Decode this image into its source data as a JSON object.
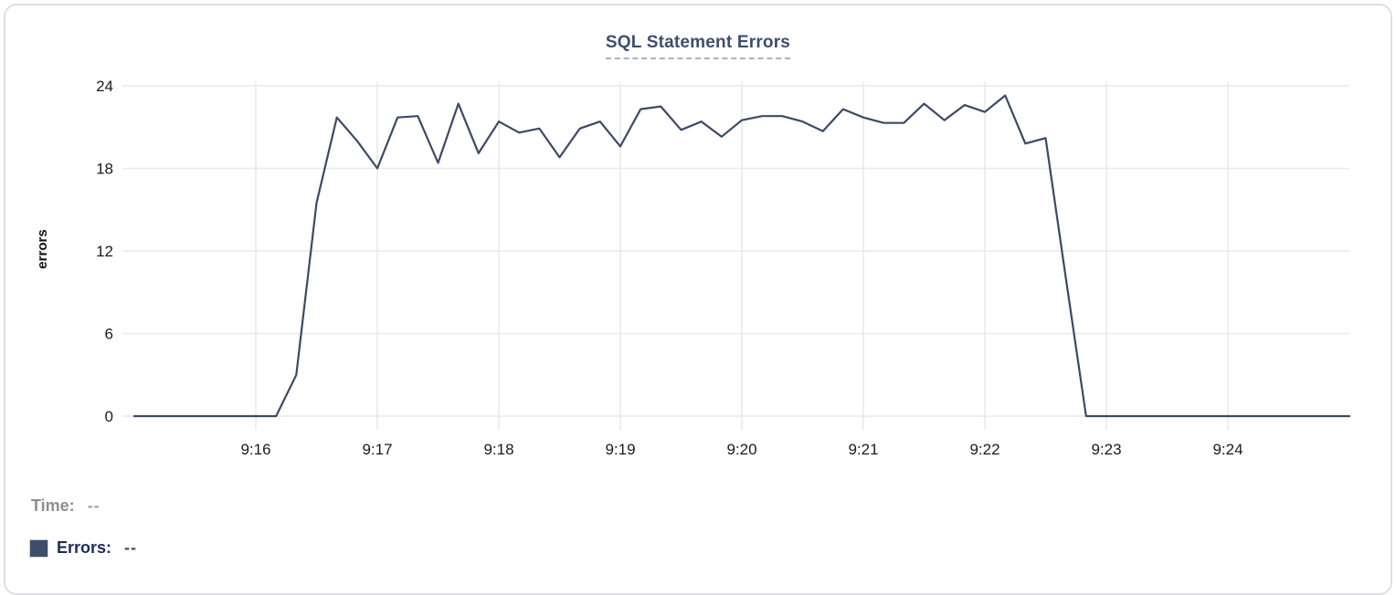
{
  "chart": {
    "title": "SQL Statement Errors"
  },
  "tooltip": {
    "time_label": "Time:",
    "time_value": "--",
    "errors_label": "Errors:",
    "errors_value": "--"
  },
  "colors": {
    "series_line": "#3b4a64",
    "legend_swatch": "#3e4d68",
    "title_text": "#3e4e6e",
    "gridline": "#e8e9eb",
    "axis_text": "#1b1b1f"
  },
  "chart_data": {
    "type": "line",
    "title": "SQL Statement Errors",
    "xlabel": "",
    "ylabel": "errors",
    "ylim": [
      0,
      24
    ],
    "y_ticks": [
      0,
      6,
      12,
      18,
      24
    ],
    "x_ticks": [
      {
        "label": "9:16",
        "t": 60
      },
      {
        "label": "9:17",
        "t": 120
      },
      {
        "label": "9:18",
        "t": 180
      },
      {
        "label": "9:19",
        "t": 240
      },
      {
        "label": "9:20",
        "t": 300
      },
      {
        "label": "9:21",
        "t": 360
      },
      {
        "label": "9:22",
        "t": 420
      },
      {
        "label": "9:23",
        "t": 480
      },
      {
        "label": "9:24",
        "t": 540
      }
    ],
    "x_start": "9:15:00",
    "x_end": "9:25:00",
    "x_step_seconds": 10,
    "grid": true,
    "legend_position": "bottom-left",
    "series": [
      {
        "name": "Errors",
        "values": [
          0,
          0,
          0,
          0,
          0,
          0,
          0,
          0,
          3,
          15.5,
          21.7,
          20,
          18,
          21.7,
          21.8,
          18.4,
          22.7,
          19.1,
          21.4,
          20.6,
          20.9,
          18.8,
          20.9,
          21.4,
          19.6,
          22.3,
          22.5,
          20.8,
          21.4,
          20.3,
          21.5,
          21.8,
          21.8,
          21.4,
          20.7,
          22.3,
          21.7,
          21.3,
          21.3,
          22.7,
          21.5,
          22.6,
          22.1,
          23.3,
          19.8,
          20.2,
          10,
          0,
          0,
          0,
          0,
          0,
          0,
          0,
          0,
          0,
          0,
          0,
          0,
          0,
          0
        ]
      }
    ]
  }
}
